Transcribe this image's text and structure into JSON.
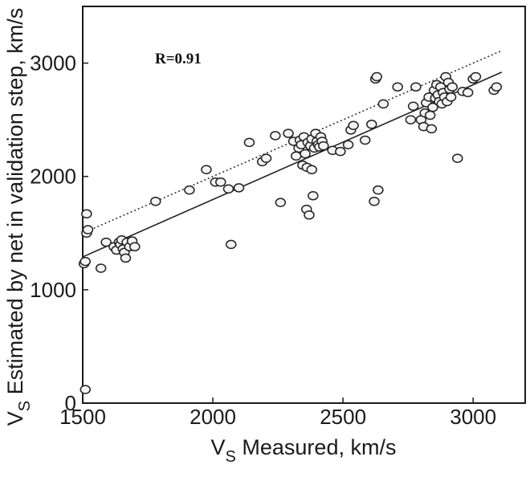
{
  "chart_data": {
    "type": "scatter",
    "title": "",
    "xlabel": {
      "main": "V",
      "sub": "S",
      "rest": " Measured, km/s"
    },
    "ylabel": {
      "main": "V",
      "sub": "S",
      "rest": " Estimated by net in validation step, km/s"
    },
    "xlim": [
      1500,
      3200
    ],
    "ylim": [
      0,
      3500
    ],
    "xticks": [
      1500,
      2000,
      2500,
      3000
    ],
    "yticks": [
      0,
      1000,
      2000,
      3000
    ],
    "xtick_labels": [
      "1500",
      "2000",
      "2500",
      "3000"
    ],
    "ytick_labels": [
      "0",
      "1000",
      "2000",
      "3000"
    ],
    "grid": false,
    "annotation": "R=0.91",
    "points": [
      [
        1510,
        120
      ],
      [
        1505,
        1230
      ],
      [
        1510,
        1250
      ],
      [
        1515,
        1500
      ],
      [
        1520,
        1530
      ],
      [
        1515,
        1670
      ],
      [
        1570,
        1190
      ],
      [
        1590,
        1420
      ],
      [
        1620,
        1380
      ],
      [
        1630,
        1350
      ],
      [
        1640,
        1420
      ],
      [
        1645,
        1400
      ],
      [
        1650,
        1440
      ],
      [
        1655,
        1360
      ],
      [
        1660,
        1330
      ],
      [
        1665,
        1280
      ],
      [
        1670,
        1420
      ],
      [
        1680,
        1380
      ],
      [
        1690,
        1430
      ],
      [
        1700,
        1380
      ],
      [
        1780,
        1780
      ],
      [
        1910,
        1880
      ],
      [
        1975,
        2060
      ],
      [
        2010,
        1950
      ],
      [
        2030,
        1950
      ],
      [
        2060,
        1890
      ],
      [
        2070,
        1400
      ],
      [
        2100,
        1900
      ],
      [
        2140,
        2300
      ],
      [
        2190,
        2130
      ],
      [
        2205,
        2160
      ],
      [
        2240,
        2360
      ],
      [
        2260,
        1770
      ],
      [
        2290,
        2380
      ],
      [
        2310,
        2310
      ],
      [
        2320,
        2180
      ],
      [
        2330,
        2250
      ],
      [
        2335,
        2320
      ],
      [
        2340,
        2280
      ],
      [
        2345,
        2100
      ],
      [
        2350,
        2350
      ],
      [
        2355,
        2200
      ],
      [
        2360,
        1710
      ],
      [
        2362,
        2080
      ],
      [
        2365,
        2300
      ],
      [
        2370,
        1660
      ],
      [
        2375,
        2270
      ],
      [
        2380,
        2060
      ],
      [
        2380,
        2330
      ],
      [
        2385,
        1830
      ],
      [
        2390,
        2250
      ],
      [
        2395,
        2380
      ],
      [
        2400,
        2310
      ],
      [
        2405,
        2280
      ],
      [
        2410,
        2260
      ],
      [
        2415,
        2350
      ],
      [
        2420,
        2310
      ],
      [
        2425,
        2270
      ],
      [
        2460,
        2230
      ],
      [
        2490,
        2220
      ],
      [
        2520,
        2280
      ],
      [
        2530,
        2410
      ],
      [
        2540,
        2450
      ],
      [
        2585,
        2320
      ],
      [
        2610,
        2460
      ],
      [
        2620,
        1780
      ],
      [
        2625,
        2860
      ],
      [
        2630,
        2880
      ],
      [
        2635,
        1880
      ],
      [
        2655,
        2640
      ],
      [
        2710,
        2790
      ],
      [
        2760,
        2500
      ],
      [
        2770,
        2620
      ],
      [
        2780,
        2790
      ],
      [
        2800,
        2500
      ],
      [
        2810,
        2440
      ],
      [
        2815,
        2560
      ],
      [
        2820,
        2650
      ],
      [
        2830,
        2700
      ],
      [
        2835,
        2540
      ],
      [
        2840,
        2420
      ],
      [
        2845,
        2610
      ],
      [
        2850,
        2760
      ],
      [
        2855,
        2690
      ],
      [
        2860,
        2810
      ],
      [
        2865,
        2720
      ],
      [
        2870,
        2660
      ],
      [
        2875,
        2790
      ],
      [
        2880,
        2640
      ],
      [
        2885,
        2740
      ],
      [
        2890,
        2700
      ],
      [
        2895,
        2880
      ],
      [
        2900,
        2660
      ],
      [
        2905,
        2830
      ],
      [
        2910,
        2770
      ],
      [
        2915,
        2700
      ],
      [
        2920,
        2790
      ],
      [
        2940,
        2160
      ],
      [
        2960,
        2750
      ],
      [
        2980,
        2740
      ],
      [
        3000,
        2860
      ],
      [
        3010,
        2880
      ],
      [
        3080,
        2760
      ],
      [
        3090,
        2790
      ]
    ],
    "fit_line": {
      "x": [
        1500,
        3110
      ],
      "y": [
        1290,
        2920
      ],
      "style": "solid"
    },
    "identity_line": {
      "x": [
        1500,
        3110
      ],
      "y": [
        1500,
        3110
      ],
      "style": "dotted"
    }
  }
}
